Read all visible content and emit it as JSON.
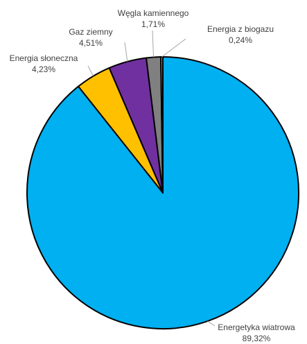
{
  "chart_data": {
    "type": "pie",
    "title": "",
    "slices": [
      {
        "label": "Energetyka wiatrowa",
        "value_label": "89,32%",
        "value": 89.32,
        "color": "#00B0F0"
      },
      {
        "label": "Energia słoneczna",
        "value_label": "4,23%",
        "value": 4.23,
        "color": "#FFC000"
      },
      {
        "label": "Gaz ziemny",
        "value_label": "4,51%",
        "value": 4.51,
        "color": "#7030A0"
      },
      {
        "label": "Węgla kamiennego",
        "value_label": "1,71%",
        "value": 1.71,
        "color": "#808080"
      },
      {
        "label": "Energia z biogazu",
        "value_label": "0,24%",
        "value": 0.24,
        "color": "#A6A6A6"
      }
    ],
    "start": "12 o'clock",
    "direction": "clockwise",
    "legend": "none",
    "border_color": "#000000",
    "leader_color": "#A6A6A6"
  }
}
